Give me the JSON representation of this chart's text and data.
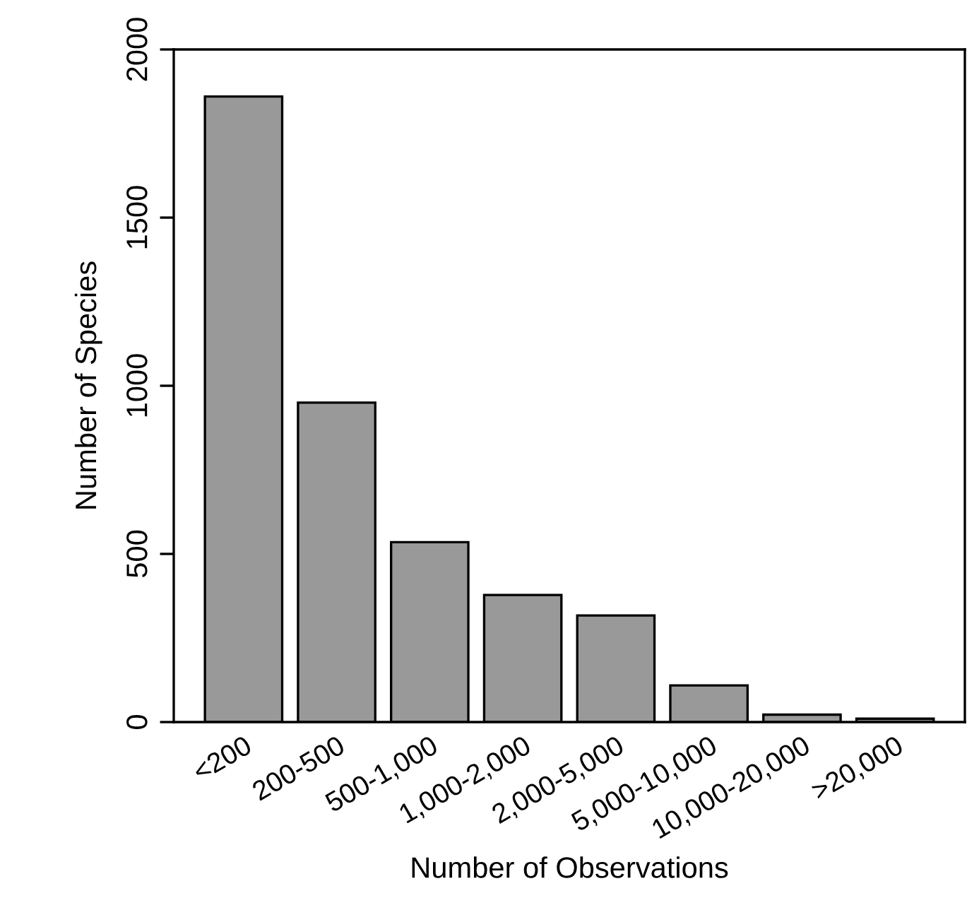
{
  "chart_data": {
    "type": "bar",
    "categories": [
      "<200",
      "200-500",
      "500-1,000",
      "1,000-2,000",
      "2,000-5,000",
      "5,000-10,000",
      "10,000-20,000",
      ">20,000"
    ],
    "values": [
      1860,
      950,
      535,
      378,
      317,
      109,
      22,
      10
    ],
    "color": "#999999",
    "xlabel": "Number of Observations",
    "ylabel": "Number of Species",
    "ylim": [
      0,
      2000
    ],
    "yticks": [
      0,
      500,
      1000,
      1500,
      2000
    ],
    "grid": false
  }
}
